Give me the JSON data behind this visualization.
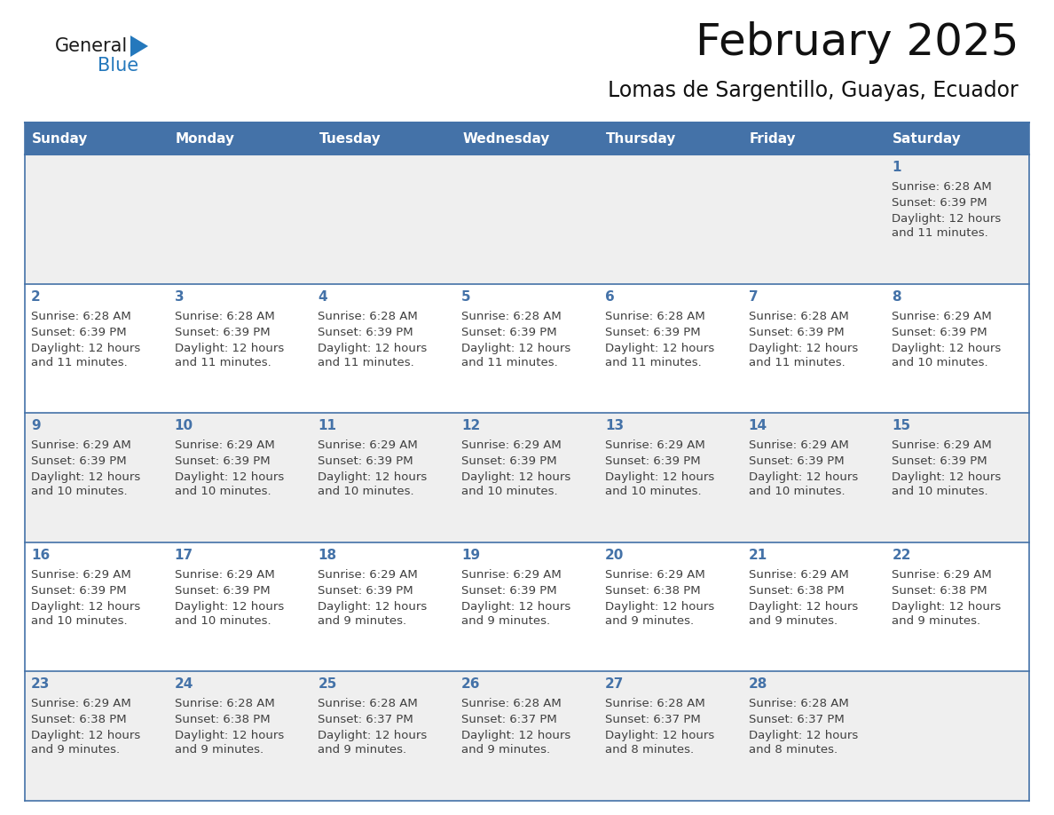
{
  "title": "February 2025",
  "subtitle": "Lomas de Sargentillo, Guayas, Ecuador",
  "header_bg_color": "#4472a8",
  "header_text_color": "#ffffff",
  "day_names": [
    "Sunday",
    "Monday",
    "Tuesday",
    "Wednesday",
    "Thursday",
    "Friday",
    "Saturday"
  ],
  "row_bg_even": "#efefef",
  "row_bg_odd": "#ffffff",
  "cell_border_color": "#4472a8",
  "date_text_color": "#4472a8",
  "info_text_color": "#404040",
  "logo_general_color": "#1a1a1a",
  "logo_blue_color": "#2478bc",
  "calendar_data": [
    [
      null,
      null,
      null,
      null,
      null,
      null,
      {
        "day": 1,
        "sunrise": "6:28 AM",
        "sunset": "6:39 PM",
        "daylight1": "Daylight: 12 hours",
        "daylight2": "and 11 minutes."
      }
    ],
    [
      {
        "day": 2,
        "sunrise": "6:28 AM",
        "sunset": "6:39 PM",
        "daylight1": "Daylight: 12 hours",
        "daylight2": "and 11 minutes."
      },
      {
        "day": 3,
        "sunrise": "6:28 AM",
        "sunset": "6:39 PM",
        "daylight1": "Daylight: 12 hours",
        "daylight2": "and 11 minutes."
      },
      {
        "day": 4,
        "sunrise": "6:28 AM",
        "sunset": "6:39 PM",
        "daylight1": "Daylight: 12 hours",
        "daylight2": "and 11 minutes."
      },
      {
        "day": 5,
        "sunrise": "6:28 AM",
        "sunset": "6:39 PM",
        "daylight1": "Daylight: 12 hours",
        "daylight2": "and 11 minutes."
      },
      {
        "day": 6,
        "sunrise": "6:28 AM",
        "sunset": "6:39 PM",
        "daylight1": "Daylight: 12 hours",
        "daylight2": "and 11 minutes."
      },
      {
        "day": 7,
        "sunrise": "6:28 AM",
        "sunset": "6:39 PM",
        "daylight1": "Daylight: 12 hours",
        "daylight2": "and 11 minutes."
      },
      {
        "day": 8,
        "sunrise": "6:29 AM",
        "sunset": "6:39 PM",
        "daylight1": "Daylight: 12 hours",
        "daylight2": "and 10 minutes."
      }
    ],
    [
      {
        "day": 9,
        "sunrise": "6:29 AM",
        "sunset": "6:39 PM",
        "daylight1": "Daylight: 12 hours",
        "daylight2": "and 10 minutes."
      },
      {
        "day": 10,
        "sunrise": "6:29 AM",
        "sunset": "6:39 PM",
        "daylight1": "Daylight: 12 hours",
        "daylight2": "and 10 minutes."
      },
      {
        "day": 11,
        "sunrise": "6:29 AM",
        "sunset": "6:39 PM",
        "daylight1": "Daylight: 12 hours",
        "daylight2": "and 10 minutes."
      },
      {
        "day": 12,
        "sunrise": "6:29 AM",
        "sunset": "6:39 PM",
        "daylight1": "Daylight: 12 hours",
        "daylight2": "and 10 minutes."
      },
      {
        "day": 13,
        "sunrise": "6:29 AM",
        "sunset": "6:39 PM",
        "daylight1": "Daylight: 12 hours",
        "daylight2": "and 10 minutes."
      },
      {
        "day": 14,
        "sunrise": "6:29 AM",
        "sunset": "6:39 PM",
        "daylight1": "Daylight: 12 hours",
        "daylight2": "and 10 minutes."
      },
      {
        "day": 15,
        "sunrise": "6:29 AM",
        "sunset": "6:39 PM",
        "daylight1": "Daylight: 12 hours",
        "daylight2": "and 10 minutes."
      }
    ],
    [
      {
        "day": 16,
        "sunrise": "6:29 AM",
        "sunset": "6:39 PM",
        "daylight1": "Daylight: 12 hours",
        "daylight2": "and 10 minutes."
      },
      {
        "day": 17,
        "sunrise": "6:29 AM",
        "sunset": "6:39 PM",
        "daylight1": "Daylight: 12 hours",
        "daylight2": "and 10 minutes."
      },
      {
        "day": 18,
        "sunrise": "6:29 AM",
        "sunset": "6:39 PM",
        "daylight1": "Daylight: 12 hours",
        "daylight2": "and 9 minutes."
      },
      {
        "day": 19,
        "sunrise": "6:29 AM",
        "sunset": "6:39 PM",
        "daylight1": "Daylight: 12 hours",
        "daylight2": "and 9 minutes."
      },
      {
        "day": 20,
        "sunrise": "6:29 AM",
        "sunset": "6:38 PM",
        "daylight1": "Daylight: 12 hours",
        "daylight2": "and 9 minutes."
      },
      {
        "day": 21,
        "sunrise": "6:29 AM",
        "sunset": "6:38 PM",
        "daylight1": "Daylight: 12 hours",
        "daylight2": "and 9 minutes."
      },
      {
        "day": 22,
        "sunrise": "6:29 AM",
        "sunset": "6:38 PM",
        "daylight1": "Daylight: 12 hours",
        "daylight2": "and 9 minutes."
      }
    ],
    [
      {
        "day": 23,
        "sunrise": "6:29 AM",
        "sunset": "6:38 PM",
        "daylight1": "Daylight: 12 hours",
        "daylight2": "and 9 minutes."
      },
      {
        "day": 24,
        "sunrise": "6:28 AM",
        "sunset": "6:38 PM",
        "daylight1": "Daylight: 12 hours",
        "daylight2": "and 9 minutes."
      },
      {
        "day": 25,
        "sunrise": "6:28 AM",
        "sunset": "6:37 PM",
        "daylight1": "Daylight: 12 hours",
        "daylight2": "and 9 minutes."
      },
      {
        "day": 26,
        "sunrise": "6:28 AM",
        "sunset": "6:37 PM",
        "daylight1": "Daylight: 12 hours",
        "daylight2": "and 9 minutes."
      },
      {
        "day": 27,
        "sunrise": "6:28 AM",
        "sunset": "6:37 PM",
        "daylight1": "Daylight: 12 hours",
        "daylight2": "and 8 minutes."
      },
      {
        "day": 28,
        "sunrise": "6:28 AM",
        "sunset": "6:37 PM",
        "daylight1": "Daylight: 12 hours",
        "daylight2": "and 8 minutes."
      },
      null
    ]
  ],
  "figsize": [
    11.88,
    9.18
  ],
  "dpi": 100
}
